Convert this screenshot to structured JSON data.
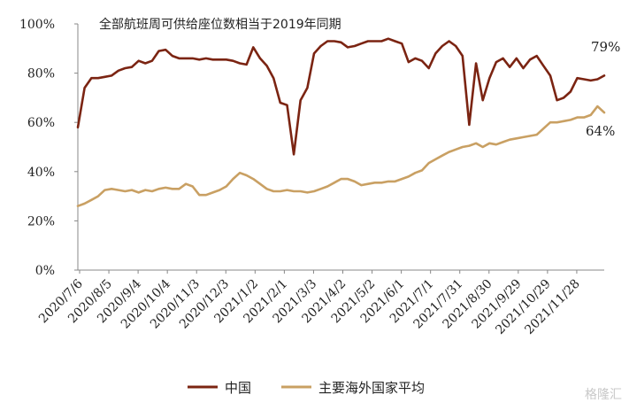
{
  "chart_data": {
    "type": "line",
    "title": "全部航班周可供给座位数相当于2019年同期",
    "ylim": [
      0,
      100
    ],
    "yticks": [
      "0%",
      "20%",
      "40%",
      "60%",
      "80%",
      "100%"
    ],
    "xlabels": [
      "2020/7/6",
      "2020/8/5",
      "2020/9/4",
      "2020/10/4",
      "2020/11/3",
      "2020/12/3",
      "2021/1/2",
      "2021/2/1",
      "2021/3/3",
      "2021/4/2",
      "2021/5/2",
      "2021/6/1",
      "2021/7/1",
      "2021/7/31",
      "2021/8/30",
      "2021/9/29",
      "2021/10/29",
      "2021/11/28"
    ],
    "grid": false,
    "legend_position": "bottom",
    "series": [
      {
        "name": "中国",
        "color": "#7b2412",
        "end_label": "79%",
        "values": [
          58,
          74,
          78,
          78,
          78.5,
          79,
          81,
          82,
          82.5,
          85,
          84,
          85,
          89,
          89.5,
          87,
          86,
          86,
          86,
          85.5,
          86,
          85.5,
          85.5,
          85.5,
          85,
          84,
          83.5,
          90.5,
          86,
          83,
          78,
          68,
          67,
          47,
          69,
          74,
          88,
          91,
          93,
          93,
          92.5,
          90.5,
          91,
          92,
          93,
          93,
          93,
          94,
          93,
          92,
          84.5,
          86,
          85,
          82,
          88,
          91,
          93,
          91,
          87,
          59,
          84,
          69,
          78,
          84.5,
          86,
          82.5,
          86,
          82,
          85.5,
          87,
          83,
          79,
          69,
          70,
          72.5,
          78,
          77.5,
          77,
          77.5,
          79
        ]
      },
      {
        "name": "主要海外国家平均",
        "color": "#c9a063",
        "end_label": "64%",
        "values": [
          26,
          27,
          28.5,
          30,
          32.5,
          33,
          32.5,
          32,
          32.5,
          31.5,
          32.5,
          32,
          33,
          33.5,
          33,
          33,
          35,
          34,
          30.5,
          30.5,
          31.5,
          32.5,
          34,
          37,
          39.5,
          38.5,
          37,
          35,
          33,
          32,
          32,
          32.5,
          32,
          32,
          31.5,
          32,
          33,
          34,
          35.5,
          37,
          37,
          36,
          34.5,
          35,
          35.5,
          35.5,
          36,
          36,
          37,
          38,
          39.5,
          40.5,
          43.5,
          45,
          46.5,
          48,
          49,
          50,
          50.5,
          51.5,
          50,
          51.5,
          51,
          52,
          53,
          53.5,
          54,
          54.5,
          55,
          57.5,
          60,
          60,
          60.5,
          61,
          62,
          62,
          63,
          66.5,
          64
        ]
      }
    ]
  },
  "watermark": "格隆汇"
}
